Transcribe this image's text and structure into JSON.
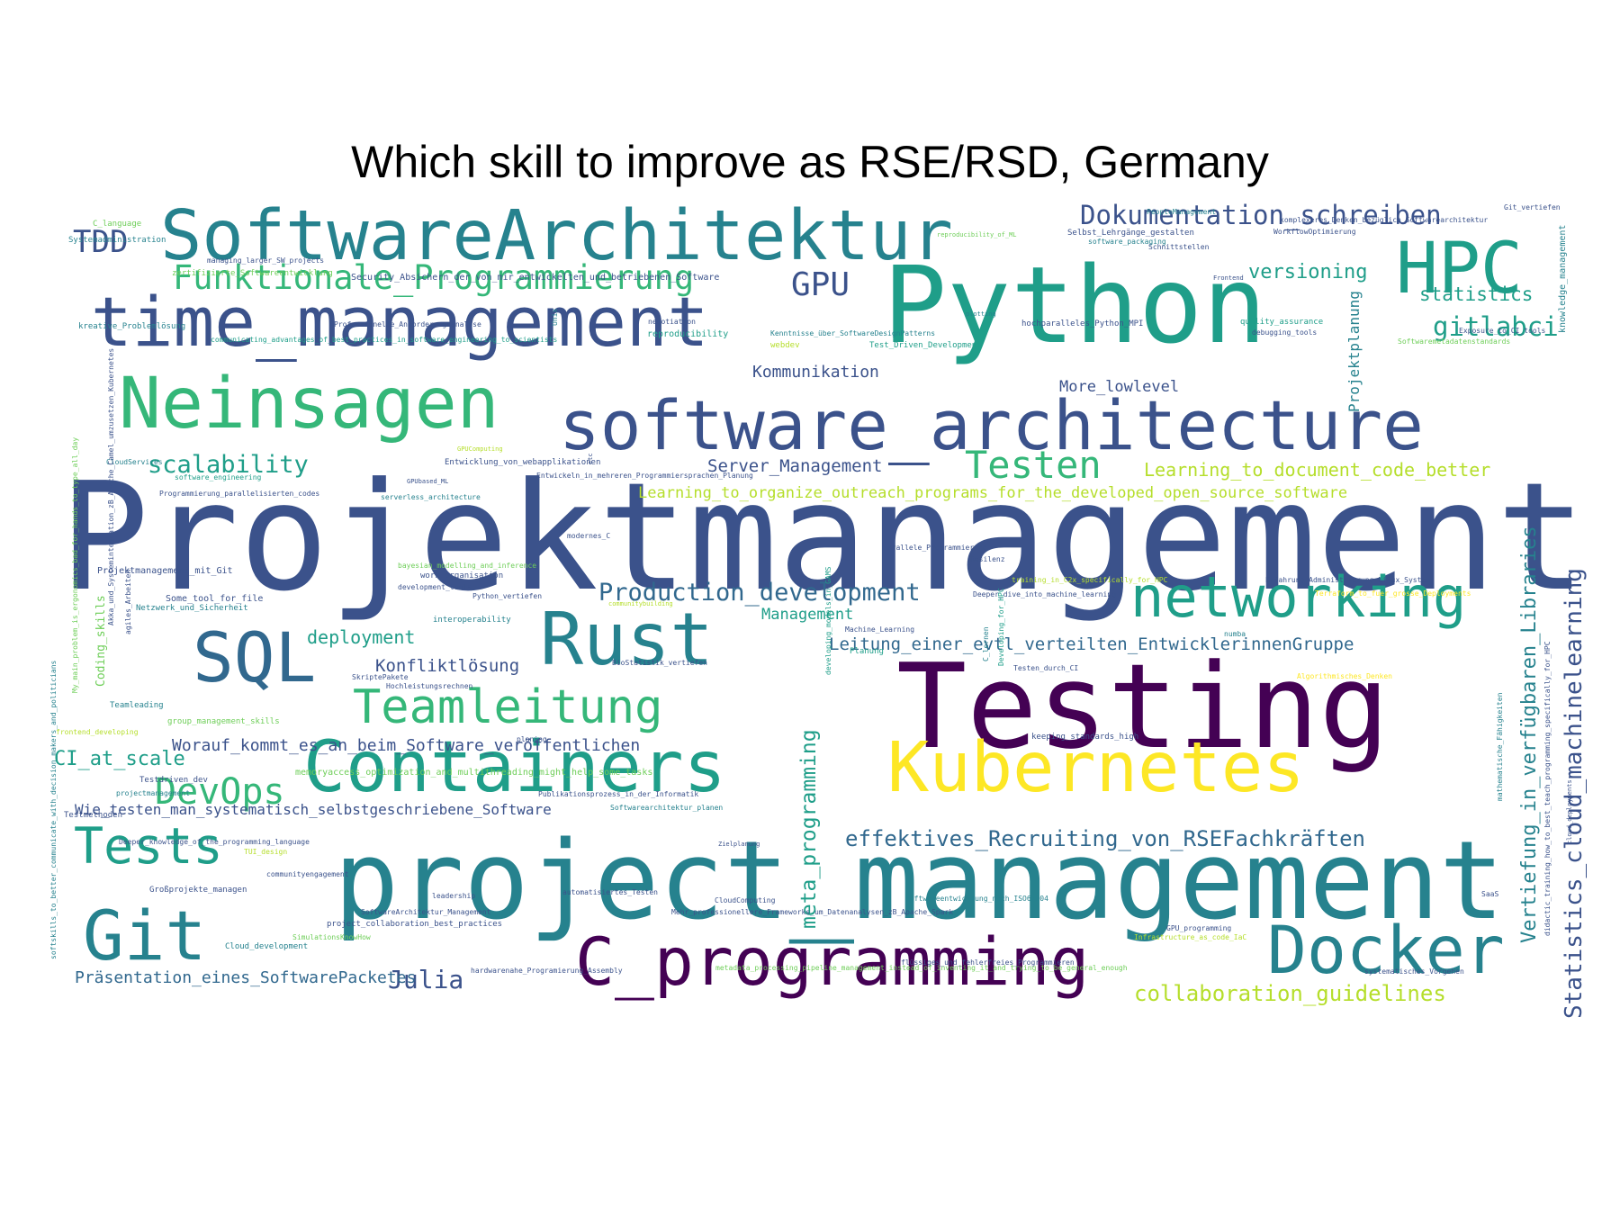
{
  "title": "Which skill to improve as RSE/RSD, Germany",
  "palette": {
    "dark_purple": "#440154",
    "indigo": "#3b528b",
    "blue": "#31688e",
    "teal": "#26828e",
    "teal_green": "#1f9e89",
    "green": "#35b779",
    "light_green": "#6ece58",
    "lime": "#b5de2b",
    "yellow": "#fde725"
  },
  "words": [
    "Projektmanagement",
    "Testing",
    "project_management",
    "Python",
    "software_architecture",
    "SoftwareArchitektur",
    "time_management",
    "Neinsagen",
    "Containers",
    "Kubernetes",
    "C_programming",
    "Docker",
    "Rust",
    "Git",
    "networking",
    "HPC",
    "SQL",
    "Tests",
    "Teamleitung",
    "Testen",
    "DevOps",
    "Funktionale_Programmierung",
    "Dokumentation_schreiben",
    "Production_development",
    "TDD",
    "GPU",
    "scalability",
    "gitlabci",
    "versioning",
    "statistics",
    "Julia",
    "effektives_Recruiting_von_RSEFachkräften",
    "collaboration_guidelines",
    "Leitung_einer_evtl_verteilten_EntwicklerinnenGruppe",
    "Learning_to_document_code_better",
    "Learning_to_organize_outreach_programs_for_the_developed_open_source_software",
    "Server_Management",
    "Worauf_kommt_es_an_beim_Software_veröffentlichen",
    "Wie_testen_man_systematisch_selbstgeschriebene_Software",
    "Präsentation_eines_SoftwarePacketes",
    "CI_at_scale",
    "deployment",
    "Konfliktlösung",
    "Kommunikation",
    "Management",
    "More_lowlevel",
    "Statistics_cloud_machinelearning",
    "meta_programming",
    "Vertiefung_in_verfügbaren_Libraries",
    "Projektplanung",
    "knowledge_management",
    "Coding_skills",
    "presentation_skills",
    "Systemadministration",
    "C_language",
    "zertifizierte_Softwareentwicklung",
    "Security_Absichern_der_von_mir_entwickelten_und_betriebenen_Software",
    "managing_larger_SW_projects",
    "kreative_Problemlösung",
    "Professionelle_Anforderungsanalyse",
    "communicating_advantages_of_best_practices_in_software_engineering_to_scientists",
    "negotiation",
    "reproducibility",
    "webdev",
    "Test_Driven_Development",
    "Kenntnisse_über_SoftwareDesignPatterns",
    "hochparalleles_Python_MPI",
    "quality_assurance",
    "debugging_tools",
    "Exposure_to_CI_tools",
    "Softwaremetadatenstandards",
    "Schnittstellen",
    "Selbst_Lehrgänge_gestalten",
    "WorkflowOptimierung",
    "komplexeres_Denken_bezüglich_Softwarearchitektur",
    "PeopleManagement",
    "Git_vertiefen",
    "software_packaging",
    "reproducibility_of_ML",
    "CloudServices",
    "software_engineering",
    "GPUComputing",
    "Entwicklung_von_webapplikationen",
    "Entwickeln_in_mehreren_Programmiersprachen_Planung",
    "GPUbased_ML",
    "Programmierung_parallelisierten_codes",
    "serverless_architecture",
    "modernes_C",
    "Projektmanagement_mit_Git",
    "bayesian_modelling_and_inference",
    "work_organisation",
    "Some_tool_for_file",
    "development_tools",
    "Python_vertiefen",
    "Netzwerk_und_Sicherheit",
    "interoperability",
    "SkriptePakete",
    "Hochleistungsrechnen",
    "Teamleading",
    "group_management_skills",
    "frontend_developing",
    "planing",
    "Testdriven_dev",
    "projectmanagement",
    "memoryaccess_optimization_and_multithreading_might_help_some_tasks",
    "Publikationsprozess_in_der_Informatik",
    "Softwarearchitektur_planen",
    "Testmethoden",
    "Deeper_knowledge_of_the_programming_language",
    "TUI_design",
    "communityengagement",
    "Großprojekte_managen",
    "leadership",
    "automatisiertes_Testen",
    "CloudComputing",
    "SoftwareArchitektur_Management",
    "project_collaboration_best_practices",
    "SimulationsKnowHow",
    "Cloud_development",
    "hardwarenahe_Programierung_Assembly",
    "metadata_processing_pipeline_management_instead_of_inventing_it_and_trying_to_be_general_enough",
    "flüssiges_und_fehlerfreies_Programmieren",
    "Mehr_professionellere_Frameworks_um_Datenanalysen_zB_Apache_Spark",
    "Softwareentwicklung_nach_ISO62304",
    "GPU_programming",
    "Infrastructure_as_code_IaC",
    "systematisches_Vorgehen",
    "SaaS",
    "Parallele_Programmierung",
    "Resilenz",
    "training_in_C2x_specifically_for_HPC",
    "Erfahrung_Administrierung_Linux_System",
    "Terraform_to_fuer_grosse_Deployments",
    "Deeper_dive_into_machine_learning",
    "Machine_Learning",
    "Planung",
    "Testen_durch_CI",
    "keeping_standards_high",
    "numba",
    "Algorithmisches_Denken",
    "BioStatistik_vertiefen",
    "Developing_for_HPC",
    "C_lernen",
    "developing_models_in_GAMS",
    "Akka_und_Systemintegration_zB_Apache_Camel_umzusetzen_Kubernetes",
    "agiles_Arbeiten",
    "mathematische_Fähigkeiten",
    "didactic_training_how_to_best_teach_programming_specifically_for_HPC",
    "cloud_deployments",
    "Unix",
    "etc",
    "softskills_to_better_communicate_with_decision_makers_and_politicians",
    "My_main_problem_is_ergonomics_bad_for_hands_to_type_all_day",
    "plotting",
    "Frontend",
    "Zielplanung",
    "communitybuilding"
  ]
}
